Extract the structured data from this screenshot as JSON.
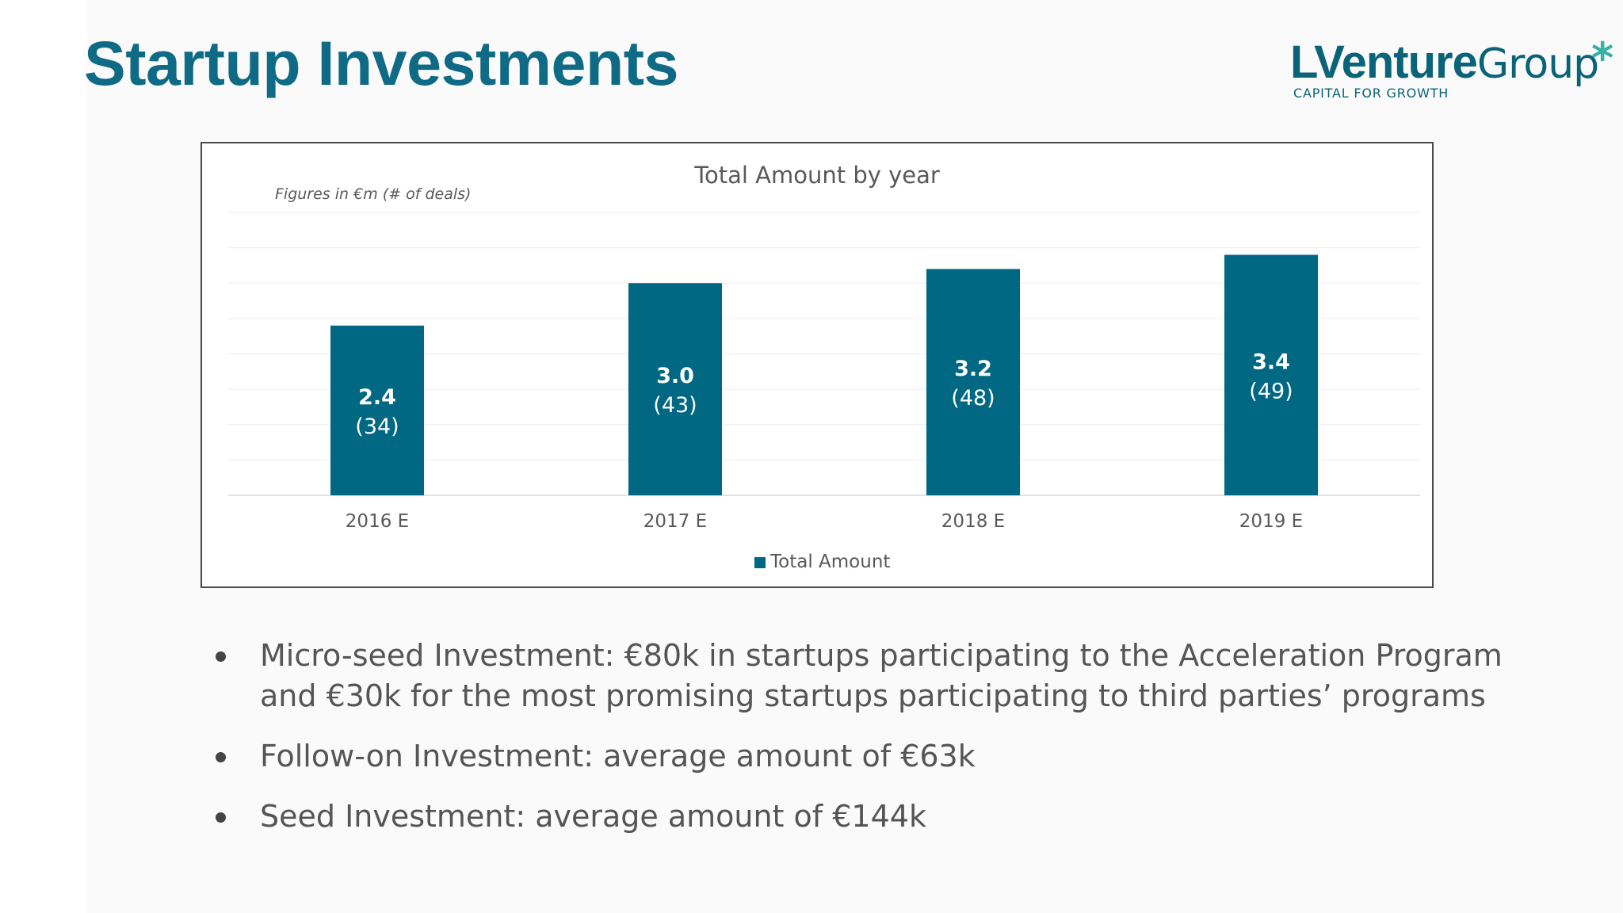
{
  "slide": {
    "title": "Startup Investments",
    "logo": {
      "bold": "LVenture",
      "light": "Group",
      "star": "*",
      "tagline": "CAPITAL FOR GROWTH"
    }
  },
  "colors": {
    "title": "#0f6a86",
    "bar": "#006882",
    "logo_text": "#0a6378",
    "logo_star": "#36b0a8"
  },
  "chart_data": {
    "type": "bar",
    "title": "Total Amount by year",
    "subtitle": "Figures in €m (# of deals)",
    "categories": [
      "2016 E",
      "2017 E",
      "2018 E",
      "2019 E"
    ],
    "series": [
      {
        "name": "Total Amount",
        "values": [
          2.4,
          3.0,
          3.2,
          3.4
        ],
        "deals": [
          34,
          43,
          48,
          49
        ],
        "value_labels": [
          "2.4",
          "3.0",
          "3.2",
          "3.4"
        ],
        "deal_labels": [
          "(34)",
          "(43)",
          "(48)",
          "(49)"
        ]
      }
    ],
    "ylim": [
      0,
      4
    ],
    "grid": true,
    "legend_position": "bottom"
  },
  "bullets": [
    "Micro-seed Investment: €80k in startups participating to the Acceleration Program and €30k for the most promising startups participating to third parties’ programs",
    "Follow-on Investment: average amount of €63k",
    "Seed Investment: average amount of €144k"
  ]
}
